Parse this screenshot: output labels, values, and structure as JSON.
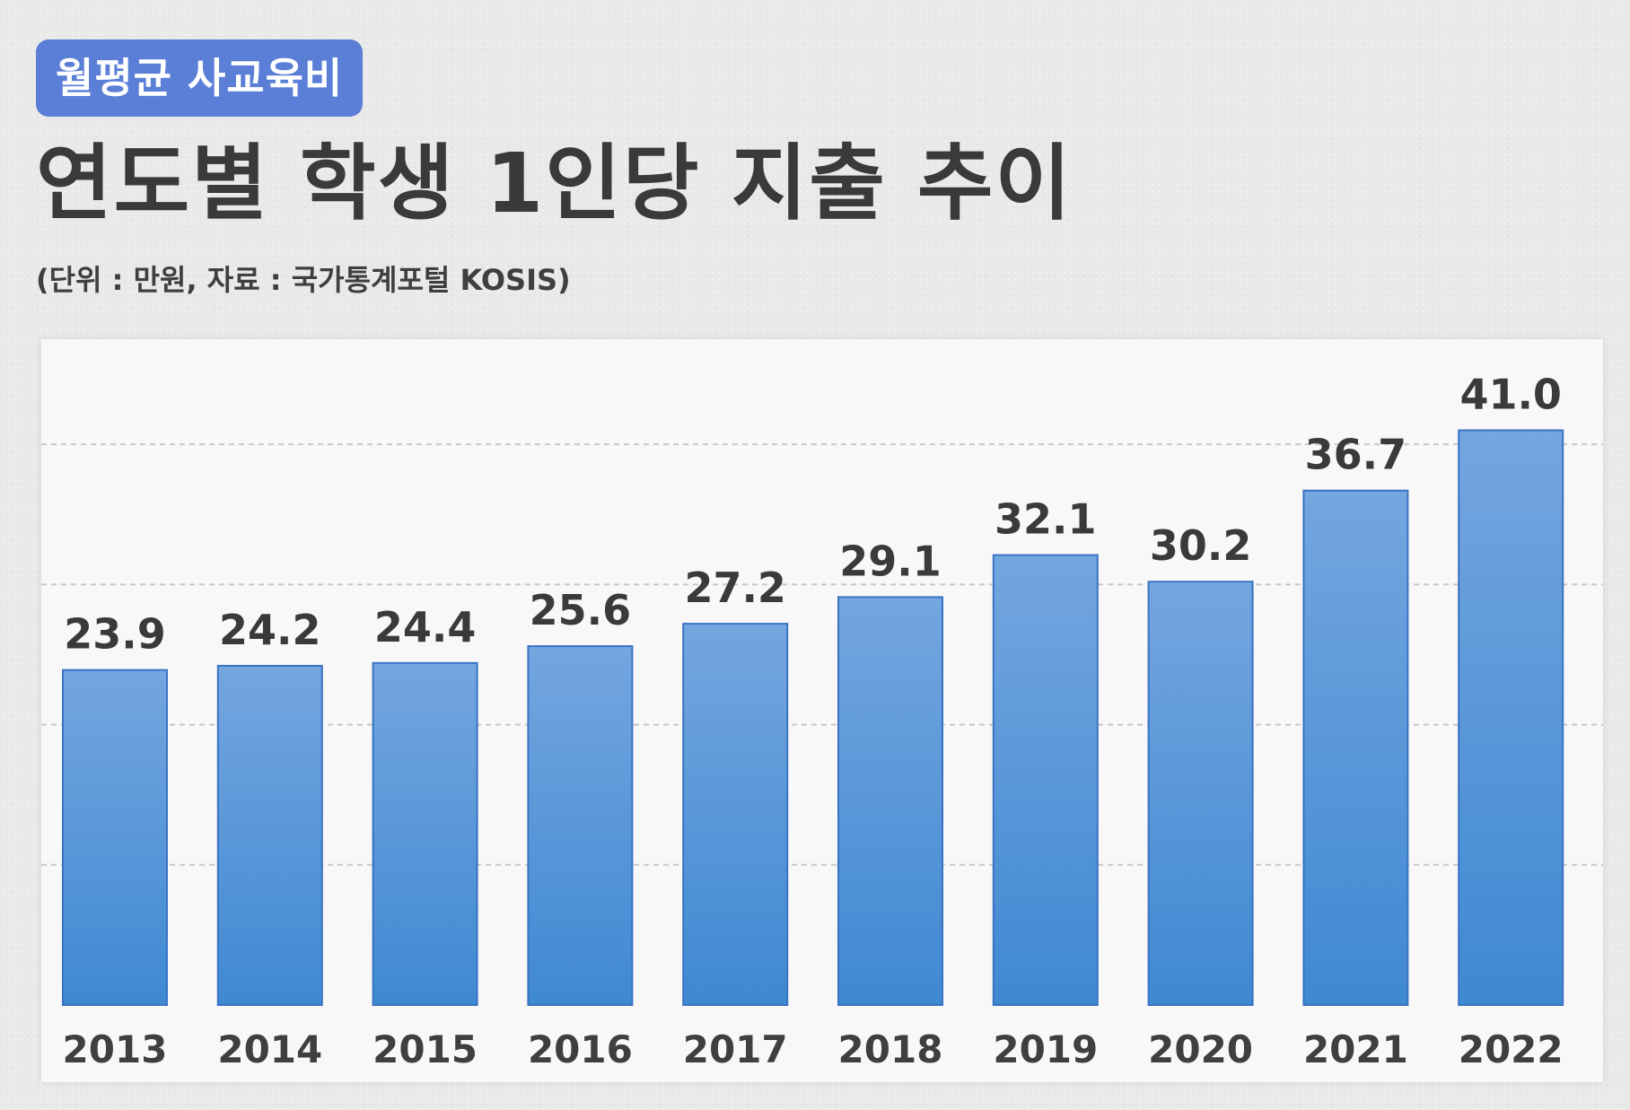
{
  "header": {
    "badge": "월평균 사교육비",
    "title": "연도별 학생 1인당 지출 추이",
    "subtitle": "(단위 : 만원, 자료 : 국가통계포털 KOSIS)"
  },
  "colors": {
    "badge_bg": "#5b7fd6",
    "bar_top": "#74a6df",
    "bar_bottom": "#3f89d2",
    "bar_border": "#3a73c2",
    "grid": "#c8c8c8"
  },
  "chart_data": {
    "type": "bar",
    "title": "연도별 학생 1인당 지출 추이",
    "ylabel": "",
    "xlabel": "",
    "categories": [
      "2013",
      "2014",
      "2015",
      "2016",
      "2017",
      "2018",
      "2019",
      "2020",
      "2021",
      "2022"
    ],
    "values": [
      23.9,
      24.2,
      24.4,
      25.6,
      27.2,
      29.1,
      32.1,
      30.2,
      36.7,
      41.0
    ],
    "value_labels": [
      "23.9",
      "24.2",
      "24.4",
      "25.6",
      "27.2",
      "29.1",
      "32.1",
      "30.2",
      "36.7",
      "41.0"
    ],
    "ylim": [
      0,
      47.5
    ],
    "gridlines": [
      10,
      20,
      30,
      40
    ],
    "grid": true,
    "legend": "none"
  }
}
